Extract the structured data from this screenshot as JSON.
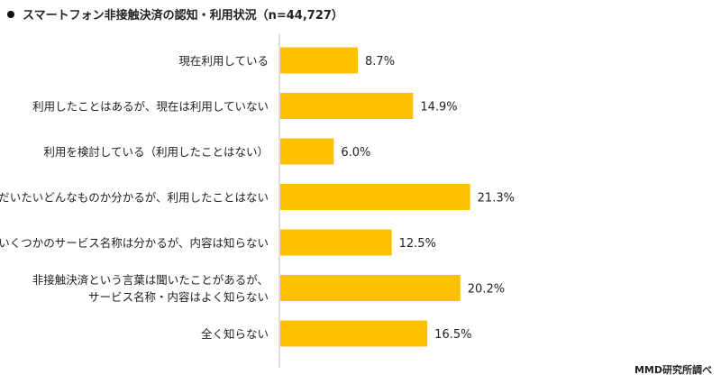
{
  "title": "スマートフォン非接触決済の認知・利用状況（n=44,727）",
  "credit": "MMD研究所調べ",
  "colors": {
    "bar": "#FFC000",
    "axis": "#bfbfbf"
  },
  "chart_data": {
    "type": "bar",
    "orientation": "horizontal",
    "title": "スマートフォン非接触決済の認知・利用状況（n=44,727）",
    "categories": [
      [
        "現在利用している"
      ],
      [
        "利用したことはあるが、現在は利用していない"
      ],
      [
        "利用を検討している（利用したことはない）"
      ],
      [
        "だいたいどんなものか分かるが、利用したことはない"
      ],
      [
        "いくつかのサービス名称は分かるが、内容は知らない"
      ],
      [
        "非接触決済という言葉は聞いたことがあるが、",
        "サービス名称・内容はよく知らない"
      ],
      [
        "全く知らない"
      ]
    ],
    "values": [
      8.7,
      14.9,
      6.0,
      21.3,
      12.5,
      20.2,
      16.5
    ],
    "value_labels": [
      "8.7%",
      "14.9%",
      "6.0%",
      "21.3%",
      "12.5%",
      "20.2%",
      "16.5%"
    ],
    "unit": "%",
    "grid": false
  }
}
